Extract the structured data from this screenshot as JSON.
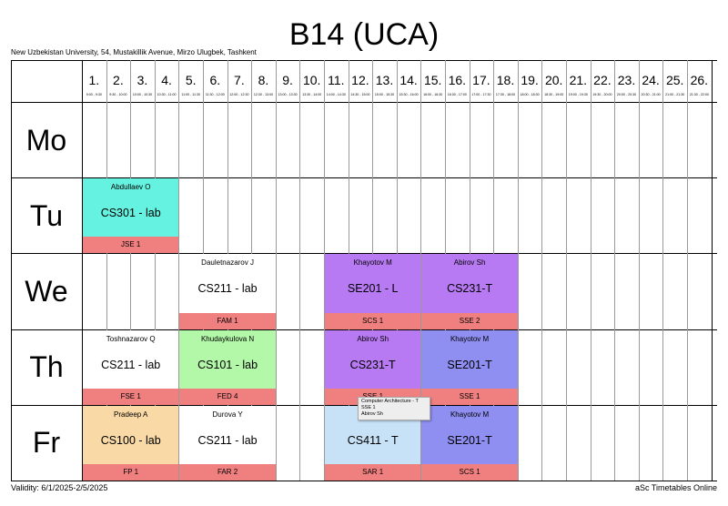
{
  "title": "B14 (UCA)",
  "address": "New Uzbekistan University, 54, Mustakillik Avenue, Mirzo Ulugbek, Tashkent",
  "footer": {
    "validity": "Validity: 6/1/2025-2/5/2025",
    "brand": "aSc Timetables Online"
  },
  "periods": [
    {
      "n": "1.",
      "t": "9:00 - 9:30"
    },
    {
      "n": "2.",
      "t": "9:30 - 10:00"
    },
    {
      "n": "3.",
      "t": "10:00 - 10:30"
    },
    {
      "n": "4.",
      "t": "10:30 - 11:00"
    },
    {
      "n": "5.",
      "t": "11:00 - 11:30"
    },
    {
      "n": "6.",
      "t": "11:30 - 12:00"
    },
    {
      "n": "7.",
      "t": "12:00 - 12:30"
    },
    {
      "n": "8.",
      "t": "12:30 - 13:00"
    },
    {
      "n": "9.",
      "t": "13:00 - 13:30"
    },
    {
      "n": "10.",
      "t": "13:30 - 14:00"
    },
    {
      "n": "11.",
      "t": "14:00 - 14:30"
    },
    {
      "n": "12.",
      "t": "14:30 - 15:00"
    },
    {
      "n": "13.",
      "t": "15:00 - 15:30"
    },
    {
      "n": "14.",
      "t": "15:30 - 16:00"
    },
    {
      "n": "15.",
      "t": "16:00 - 16:30"
    },
    {
      "n": "16.",
      "t": "16:30 - 17:00"
    },
    {
      "n": "17.",
      "t": "17:00 - 17:30"
    },
    {
      "n": "18.",
      "t": "17:30 - 18:00"
    },
    {
      "n": "19.",
      "t": "18:00 - 18:30"
    },
    {
      "n": "20.",
      "t": "18:30 - 19:00"
    },
    {
      "n": "21.",
      "t": "19:00 - 19:30"
    },
    {
      "n": "22.",
      "t": "19:30 - 20:00"
    },
    {
      "n": "23.",
      "t": "20:00 - 20:30"
    },
    {
      "n": "24.",
      "t": "20:30 - 21:00"
    },
    {
      "n": "25.",
      "t": "21:00 - 21:30"
    },
    {
      "n": "26.",
      "t": "21:30 - 22:00"
    }
  ],
  "days": [
    "Mo",
    "Tu",
    "We",
    "Th",
    "Fr"
  ],
  "lessons": [
    {
      "day": 1,
      "start": 0,
      "span": 4,
      "teacher": "Abdullaev O",
      "subject": "CS301 - lab",
      "room": "JSE 1",
      "color": "#66f2e0"
    },
    {
      "day": 2,
      "start": 4,
      "span": 4,
      "teacher": "Dauletnazarov J",
      "subject": "CS211 - lab",
      "room": "FAM 1",
      "color": "#ffffff"
    },
    {
      "day": 2,
      "start": 10,
      "span": 4,
      "teacher": "Khayotov M",
      "subject": "SE201 - L",
      "room": "SCS 1",
      "color": "#b77af2"
    },
    {
      "day": 2,
      "start": 14,
      "span": 4,
      "teacher": "Abirov Sh",
      "subject": "CS231-T",
      "room": "SSE 2",
      "color": "#b77af2"
    },
    {
      "day": 3,
      "start": 0,
      "span": 4,
      "teacher": "Toshnazarov Q",
      "subject": "CS211 - lab",
      "room": "FSE 1",
      "color": "#ffffff"
    },
    {
      "day": 3,
      "start": 4,
      "span": 4,
      "teacher": "Khudaykulova N",
      "subject": "CS101 - lab",
      "room": "FED 4",
      "color": "#b3f7a8"
    },
    {
      "day": 3,
      "start": 10,
      "span": 4,
      "teacher": "Abirov Sh",
      "subject": "CS231-T",
      "room": "SSE 1",
      "color": "#b77af2"
    },
    {
      "day": 3,
      "start": 14,
      "span": 4,
      "teacher": "Khayotov M",
      "subject": "SE201-T",
      "room": "SSE 1",
      "color": "#8f8ff2"
    },
    {
      "day": 4,
      "start": 0,
      "span": 4,
      "teacher": "Pradeep A",
      "subject": "CS100 - lab",
      "room": "FP 1",
      "color": "#f9d9a6"
    },
    {
      "day": 4,
      "start": 4,
      "span": 4,
      "teacher": "Durova Y",
      "subject": "CS211 - lab",
      "room": "FAR 2",
      "color": "#ffffff"
    },
    {
      "day": 4,
      "start": 10,
      "span": 4,
      "teacher": "To",
      "subject": "CS411 - T",
      "room": "SAR 1",
      "color": "#c7e2f7"
    },
    {
      "day": 4,
      "start": 14,
      "span": 4,
      "teacher": "Khayotov M",
      "subject": "SE201-T",
      "room": "SCS 1",
      "color": "#8f8ff2"
    }
  ],
  "tooltip": {
    "lines": [
      "Computer Architecture - T",
      "SSE 1",
      "Abirov Sh"
    ]
  }
}
